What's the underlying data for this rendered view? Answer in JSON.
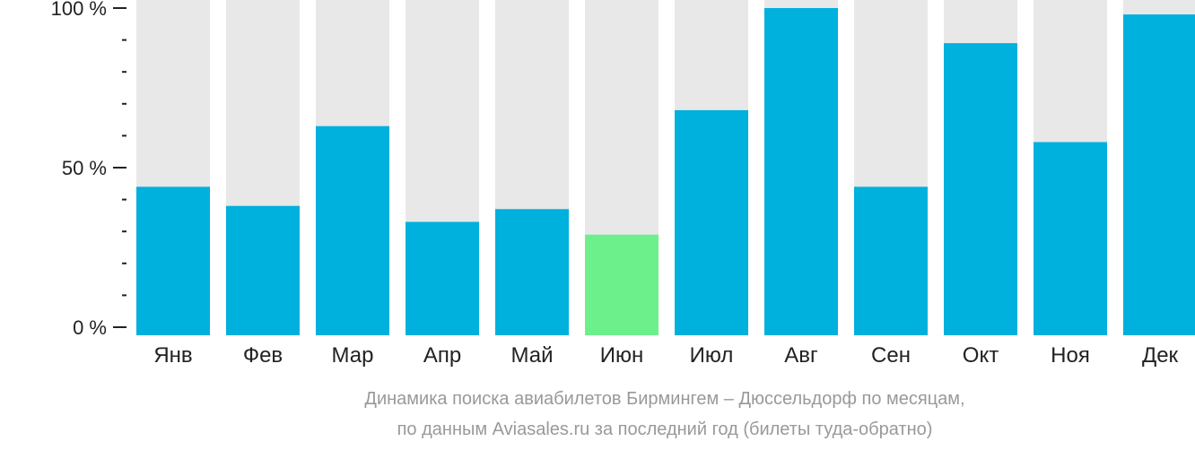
{
  "chart_data": {
    "type": "bar",
    "categories": [
      "Янв",
      "Фев",
      "Мар",
      "Апр",
      "Май",
      "Июн",
      "Июл",
      "Авг",
      "Сен",
      "Окт",
      "Ноя",
      "Дек"
    ],
    "series": [
      {
        "values": [
          44,
          38,
          63,
          33,
          37,
          29,
          68,
          100,
          44,
          89,
          58,
          98
        ]
      }
    ],
    "ylim": [
      0,
      100
    ],
    "y_ticks": [
      "0 %",
      "50 %",
      "100 %"
    ],
    "highlight_category": "Июн",
    "colors": {
      "bar": "#00b0dd",
      "highlight": "#6cf08b",
      "track": "#e8e8e8",
      "axis": "#222222",
      "caption": "#999999"
    },
    "caption": [
      "Динамика поиска авиабилетов Бирмингем – Дюссельдорф по месяцам,",
      "по данным Aviasales.ru за последний год (билеты туда-обратно)"
    ]
  }
}
